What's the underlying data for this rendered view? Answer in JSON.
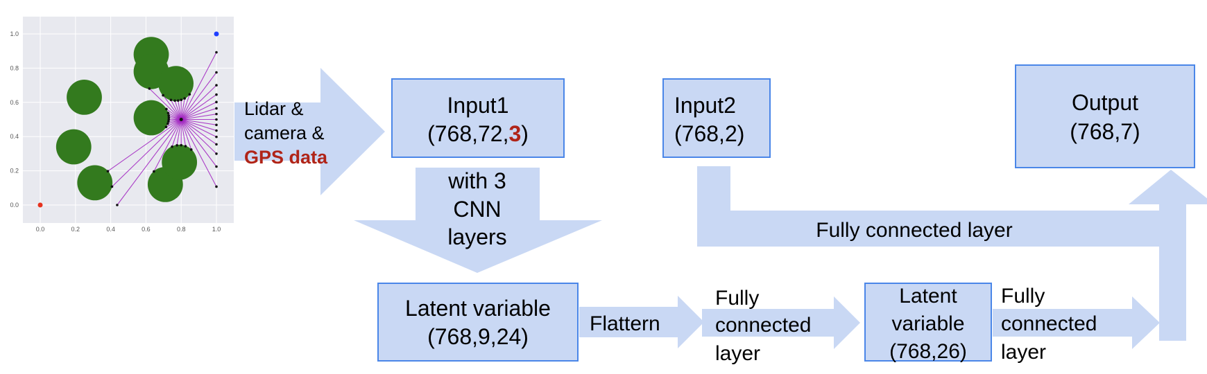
{
  "colors": {
    "box_fill": "#c9d8f4",
    "box_stroke": "#4a86e8",
    "arrow_fill": "#c9d8f4",
    "highlight_red": "#b02418",
    "obstacle_green": "#337a1e",
    "ray_purple": "#a020c0",
    "goal_blue": "#1f3fff",
    "start_red": "#e6321e",
    "plot_bg": "#e8e9ef"
  },
  "sensor_arrow": {
    "line1": "Lidar &",
    "line2": "camera &",
    "line3": "GPS data"
  },
  "input1": {
    "line1": "Input1",
    "line2_prefix": "(768,72,",
    "line2_highlight": "3",
    "line2_suffix": ")"
  },
  "input2": {
    "line1": "Input2",
    "line2": "(768,2)"
  },
  "output": {
    "line1": "Output",
    "line2": "(768,7)"
  },
  "cnn_arrow": {
    "line1": "with 3",
    "line2": "CNN",
    "line3": "layers"
  },
  "latent1": {
    "line1": "Latent variable",
    "line2": "(768,9,24)"
  },
  "flatten_arrow": {
    "label": "Flattern"
  },
  "fc_arrow1": {
    "line1": "Fully",
    "line2": "connected",
    "line3": "layer"
  },
  "latent2": {
    "line1": "Latent",
    "line2": "variable",
    "line3": "(768,26)"
  },
  "fc_arrow2": {
    "line1": "Fully",
    "line2": "connected",
    "line3": "layer"
  },
  "fc_top": {
    "label": "Fully connected layer"
  },
  "plot": {
    "x_ticks": [
      "0.0",
      "0.2",
      "0.4",
      "0.6",
      "0.8",
      "1.0"
    ],
    "y_ticks": [
      "0.0",
      "0.2",
      "0.4",
      "0.6",
      "0.8",
      "1.0"
    ],
    "agent": [
      0.8,
      0.5
    ],
    "goal": [
      1.0,
      1.0
    ],
    "start": [
      0.0,
      0.0
    ],
    "obstacles": [
      [
        0.25,
        0.63
      ],
      [
        0.19,
        0.34
      ],
      [
        0.31,
        0.13
      ],
      [
        0.63,
        0.88
      ],
      [
        0.63,
        0.78
      ],
      [
        0.77,
        0.71
      ],
      [
        0.63,
        0.51
      ],
      [
        0.71,
        0.12
      ],
      [
        0.79,
        0.25
      ]
    ],
    "obstacle_radius": 0.1,
    "ray_count": 40
  }
}
